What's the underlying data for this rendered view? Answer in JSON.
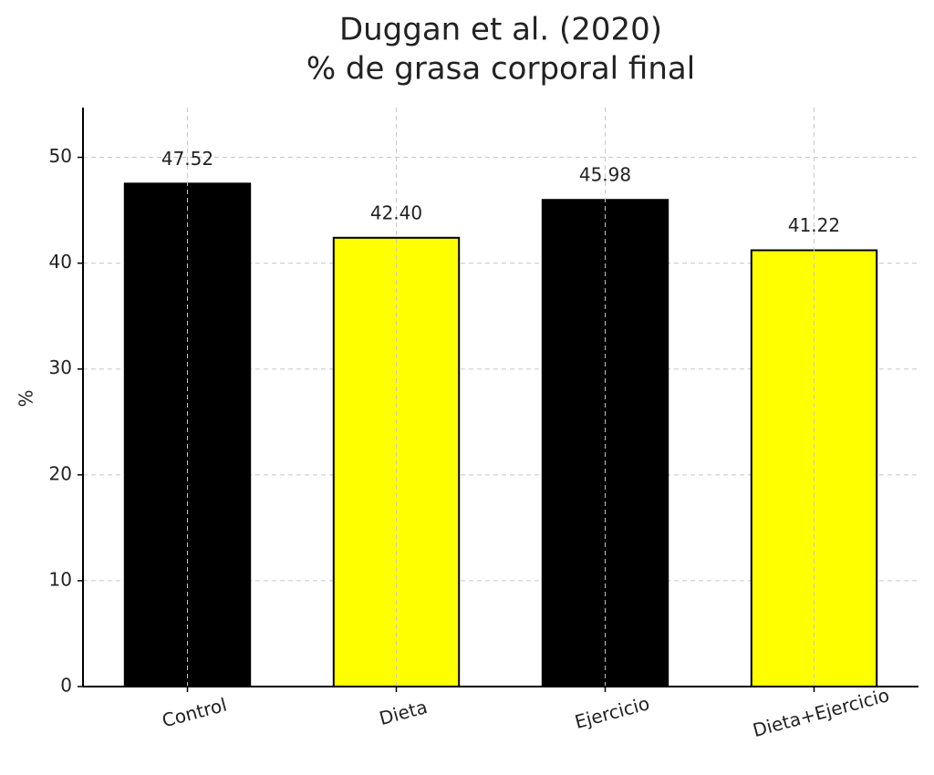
{
  "chart_data": {
    "type": "bar",
    "title": [
      "Duggan et al. (2020)",
      "% de grasa corporal final"
    ],
    "y_label": "%",
    "categories": [
      "Control",
      "Dieta",
      "Ejercicio",
      "Dieta+Ejercicio"
    ],
    "values": [
      47.52,
      42.4,
      45.98,
      41.22
    ],
    "value_labels": [
      "47.52",
      "42.40",
      "45.98",
      "41.22"
    ],
    "colors": [
      "#000000",
      "#ffff00",
      "#000000",
      "#ffff00"
    ],
    "ylim": [
      0,
      54.7
    ],
    "yticks": [
      0,
      10,
      20,
      30,
      40,
      50
    ],
    "grid": true
  }
}
